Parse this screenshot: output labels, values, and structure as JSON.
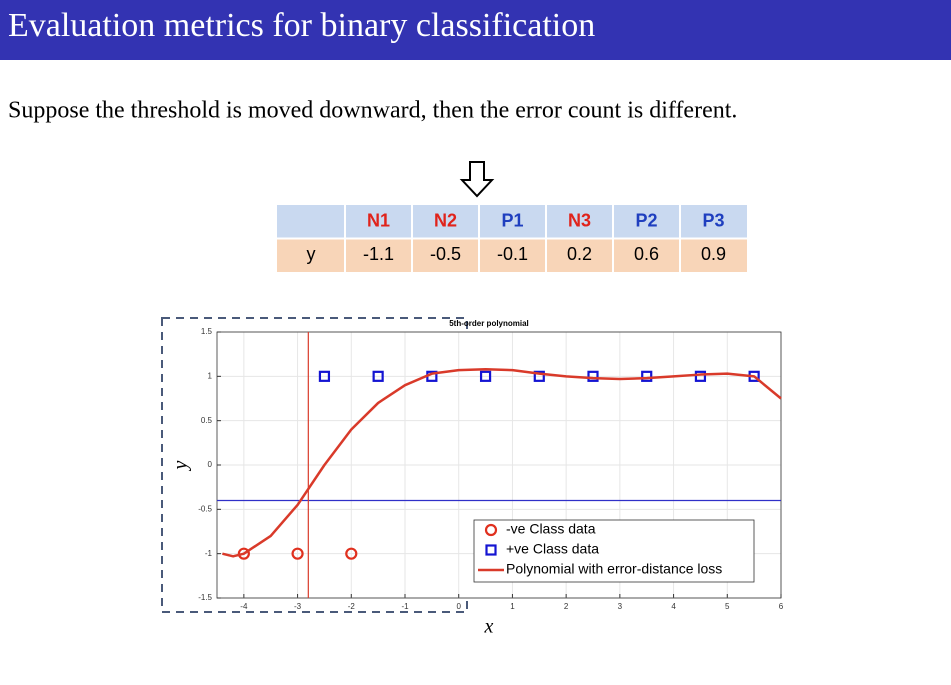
{
  "header": {
    "title": "Evaluation metrics for binary classification"
  },
  "body": {
    "text": "Suppose the threshold is moved downward, then the error count is different."
  },
  "table": {
    "columns": [
      {
        "label": "N1",
        "color": "#e0231b"
      },
      {
        "label": "N2",
        "color": "#e0231b"
      },
      {
        "label": "P1",
        "color": "#1f3fbf"
      },
      {
        "label": "N3",
        "color": "#e0231b"
      },
      {
        "label": "P2",
        "color": "#1f3fbf"
      },
      {
        "label": "P3",
        "color": "#1f3fbf"
      }
    ],
    "row_label": "y",
    "values": [
      -1.1,
      -0.5,
      -0.1,
      0.2,
      0.6,
      0.9
    ]
  },
  "chart_data": {
    "type": "scatter",
    "title": "5th-order polynomial",
    "xlabel": "x",
    "ylabel": "y",
    "xlim": [
      -4.5,
      6
    ],
    "ylim": [
      -1.5,
      1.5
    ],
    "xticks": [
      -4,
      -3,
      -2,
      -1,
      0,
      1,
      2,
      3,
      4,
      5,
      6
    ],
    "yticks": [
      -1.5,
      -1,
      -0.5,
      0,
      0.5,
      1,
      1.5
    ],
    "grid": true,
    "legend": "lower right",
    "series": [
      {
        "name": "-ve Class data",
        "type": "scatter",
        "marker": "circle",
        "color": "#e0301e",
        "x": [
          -4,
          -3,
          -2
        ],
        "values": [
          -1,
          -1,
          -1
        ]
      },
      {
        "name": "+ve Class data",
        "type": "scatter",
        "marker": "square",
        "color": "#1414d2",
        "x": [
          -2.5,
          -1.5,
          -0.5,
          0.5,
          1.5,
          2.5,
          3.5,
          4.5,
          5.5
        ],
        "values": [
          1,
          1,
          1,
          1,
          1,
          1,
          1,
          1,
          1
        ]
      },
      {
        "name": "Polynomial with error-distance loss",
        "type": "line",
        "color": "#d93a2a",
        "x": [
          -4.4,
          -4.2,
          -4,
          -3.5,
          -3,
          -2.5,
          -2,
          -1.5,
          -1,
          -0.5,
          0,
          0.5,
          1,
          1.5,
          2,
          2.5,
          3,
          3.5,
          4,
          4.5,
          5,
          5.5,
          6
        ],
        "values": [
          -1.0,
          -1.03,
          -1.0,
          -0.8,
          -0.45,
          0.0,
          0.4,
          0.7,
          0.9,
          1.03,
          1.07,
          1.08,
          1.07,
          1.03,
          1.0,
          0.98,
          0.97,
          0.98,
          1.0,
          1.02,
          1.03,
          1.0,
          0.75
        ]
      }
    ],
    "threshold_y": {
      "value": -0.4,
      "color": "#3030c8"
    },
    "threshold_x": {
      "value": -2.8,
      "color": "#d93a2a"
    }
  }
}
